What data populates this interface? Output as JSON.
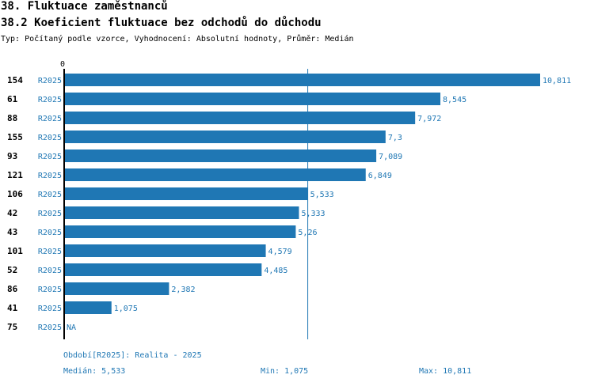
{
  "header": {
    "title": "38. Fluktuace zaměstnanců",
    "subtitle": "38.2 Koeficient fluktuace bez odchodů do důchodu",
    "type_line": "Typ: Počítaný podle vzorce, Vyhodnocení: Absolutní hodnoty, Průměr: Medián"
  },
  "chart_data": {
    "type": "bar",
    "orientation": "horizontal",
    "title": "38.2 Koeficient fluktuace bez odchodů do důchodu",
    "x_axis_zero_label": "0",
    "xlim": [
      0,
      10.811
    ],
    "bar_color": "#1f77b4",
    "reference_line": {
      "label": "Medián",
      "value": 5.533
    },
    "rows": [
      {
        "id": "154",
        "period": "R2025",
        "value": 10.811,
        "label": "10,811"
      },
      {
        "id": "61",
        "period": "R2025",
        "value": 8.545,
        "label": "8,545"
      },
      {
        "id": "88",
        "period": "R2025",
        "value": 7.972,
        "label": "7,972"
      },
      {
        "id": "155",
        "period": "R2025",
        "value": 7.3,
        "label": "7,3"
      },
      {
        "id": "93",
        "period": "R2025",
        "value": 7.089,
        "label": "7,089"
      },
      {
        "id": "121",
        "period": "R2025",
        "value": 6.849,
        "label": "6,849"
      },
      {
        "id": "106",
        "period": "R2025",
        "value": 5.533,
        "label": "5,533"
      },
      {
        "id": "42",
        "period": "R2025",
        "value": 5.333,
        "label": "5,333"
      },
      {
        "id": "43",
        "period": "R2025",
        "value": 5.26,
        "label": "5,26"
      },
      {
        "id": "101",
        "period": "R2025",
        "value": 4.579,
        "label": "4,579"
      },
      {
        "id": "52",
        "period": "R2025",
        "value": 4.485,
        "label": "4,485"
      },
      {
        "id": "86",
        "period": "R2025",
        "value": 2.382,
        "label": "2,382"
      },
      {
        "id": "41",
        "period": "R2025",
        "value": 1.075,
        "label": "1,075"
      },
      {
        "id": "75",
        "period": "R2025",
        "value": null,
        "label": "NA"
      }
    ]
  },
  "footer": {
    "period_legend": "Období[R2025]: Realita - 2025",
    "median": "Medián: 5,533",
    "min": "Min: 1,075",
    "max": "Max: 10,811"
  }
}
